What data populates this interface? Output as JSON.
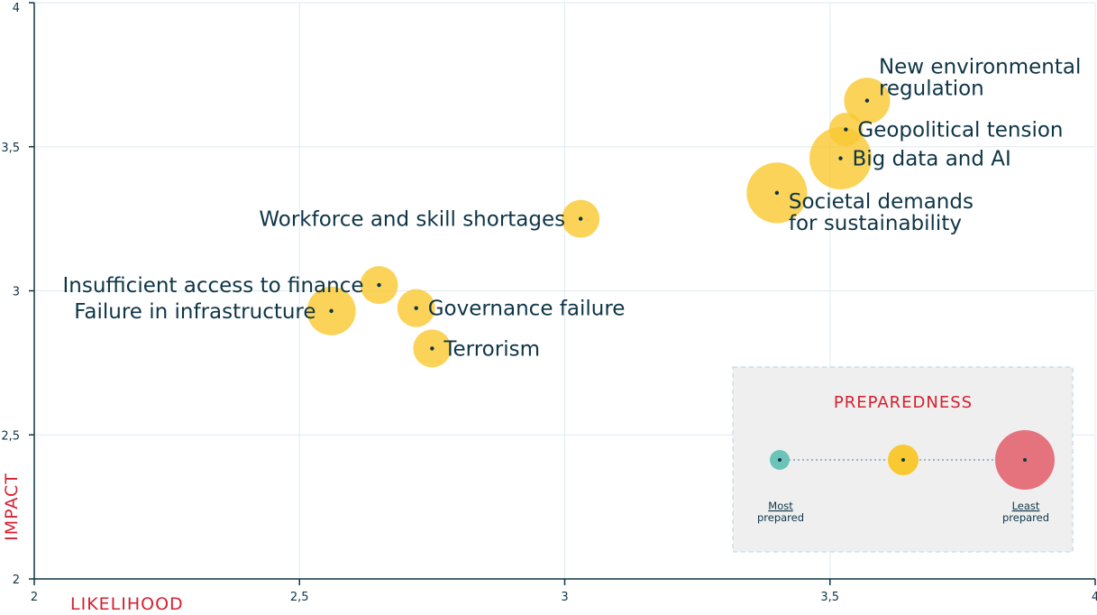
{
  "chart_data": {
    "type": "scatter",
    "xlabel": "LIKELIHOOD",
    "ylabel": "IMPACT",
    "xlim": [
      2,
      4
    ],
    "ylim": [
      2,
      4
    ],
    "xticks": [
      {
        "value": 2,
        "label": "2"
      },
      {
        "value": 2.5,
        "label": "2,5"
      },
      {
        "value": 3,
        "label": "3"
      },
      {
        "value": 3.5,
        "label": "3,5"
      },
      {
        "value": 4,
        "label": "4"
      }
    ],
    "yticks": [
      {
        "value": 2,
        "label": "2"
      },
      {
        "value": 2.5,
        "label": "2,5"
      },
      {
        "value": 3,
        "label": "3"
      },
      {
        "value": 3.5,
        "label": "3,5"
      },
      {
        "value": 4,
        "label": "4"
      }
    ],
    "grid": true,
    "colors": {
      "bubble": "#f9c933",
      "accent": "#d5202f",
      "text": "#0e3547",
      "most_prepared": "#6cc4b8",
      "least_prepared": "#e5737d"
    },
    "points": [
      {
        "label": [
          "New environmental",
          "regulation"
        ],
        "x": 3.57,
        "y": 3.66,
        "preparedness": 0.45,
        "label_side": "right"
      },
      {
        "label": [
          "Geopolitical tension"
        ],
        "x": 3.53,
        "y": 3.56,
        "preparedness": 0.22,
        "label_side": "right"
      },
      {
        "label": [
          "Big data and AI"
        ],
        "x": 3.52,
        "y": 3.46,
        "preparedness": 0.75,
        "label_side": "right"
      },
      {
        "label": [
          "Societal demands",
          "for sustainability"
        ],
        "x": 3.4,
        "y": 3.34,
        "preparedness": 0.72,
        "label_side": "right"
      },
      {
        "label": [
          "Workforce and skill shortages"
        ],
        "x": 3.03,
        "y": 3.25,
        "preparedness": 0.3,
        "label_side": "left"
      },
      {
        "label": [
          "Insufficient access to finance"
        ],
        "x": 2.65,
        "y": 3.02,
        "preparedness": 0.3,
        "label_side": "left"
      },
      {
        "label": [
          "Governance failure"
        ],
        "x": 2.72,
        "y": 2.94,
        "preparedness": 0.3,
        "label_side": "right"
      },
      {
        "label": [
          "Failure in infrastructure"
        ],
        "x": 2.56,
        "y": 2.93,
        "preparedness": 0.5,
        "label_side": "left"
      },
      {
        "label": [
          "Terrorism"
        ],
        "x": 2.75,
        "y": 2.8,
        "preparedness": 0.3,
        "label_side": "right"
      }
    ],
    "legend": {
      "title": "PREPAREDNESS",
      "placement": "bottom-right",
      "most_label": [
        "Most",
        "prepared"
      ],
      "least_label": [
        "Least",
        "prepared"
      ],
      "samples": [
        0,
        0.3,
        1
      ]
    }
  }
}
